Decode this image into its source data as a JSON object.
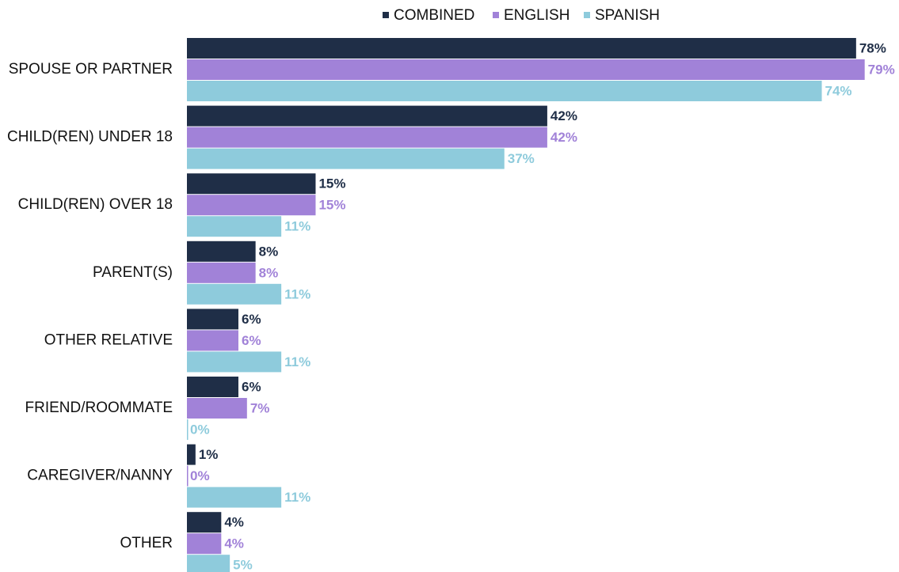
{
  "chart_data": {
    "type": "barh",
    "categories": [
      "SPOUSE OR PARTNER",
      "CHILD(REN) UNDER 18",
      "CHILD(REN) OVER 18",
      "PARENT(S)",
      "OTHER RELATIVE",
      "FRIEND/ROOMMATE",
      "CAREGIVER/NANNY",
      "OTHER"
    ],
    "series": [
      {
        "name": "COMBINED",
        "color": "#1f2e47",
        "values": [
          78,
          42,
          15,
          8,
          6,
          6,
          1,
          4
        ],
        "value_labels": [
          "78%",
          "42%",
          "15%",
          "8%",
          "6%",
          "6%",
          "1%",
          "4%"
        ]
      },
      {
        "name": "ENGLISH",
        "color": "#a182d8",
        "values": [
          79,
          42,
          15,
          8,
          6,
          7,
          0,
          4
        ],
        "value_labels": [
          "79%",
          "42%",
          "15%",
          "8%",
          "6%",
          "7%",
          "0%",
          "4%"
        ]
      },
      {
        "name": "SPANISH",
        "color": "#8ecbdc",
        "values": [
          74,
          37,
          11,
          11,
          11,
          0,
          11,
          5
        ],
        "value_labels": [
          "74%",
          "37%",
          "11%",
          "11%",
          "11%",
          "0%",
          "11%",
          "5%"
        ]
      }
    ],
    "xlim": [
      0,
      83
    ],
    "legend": "top"
  }
}
